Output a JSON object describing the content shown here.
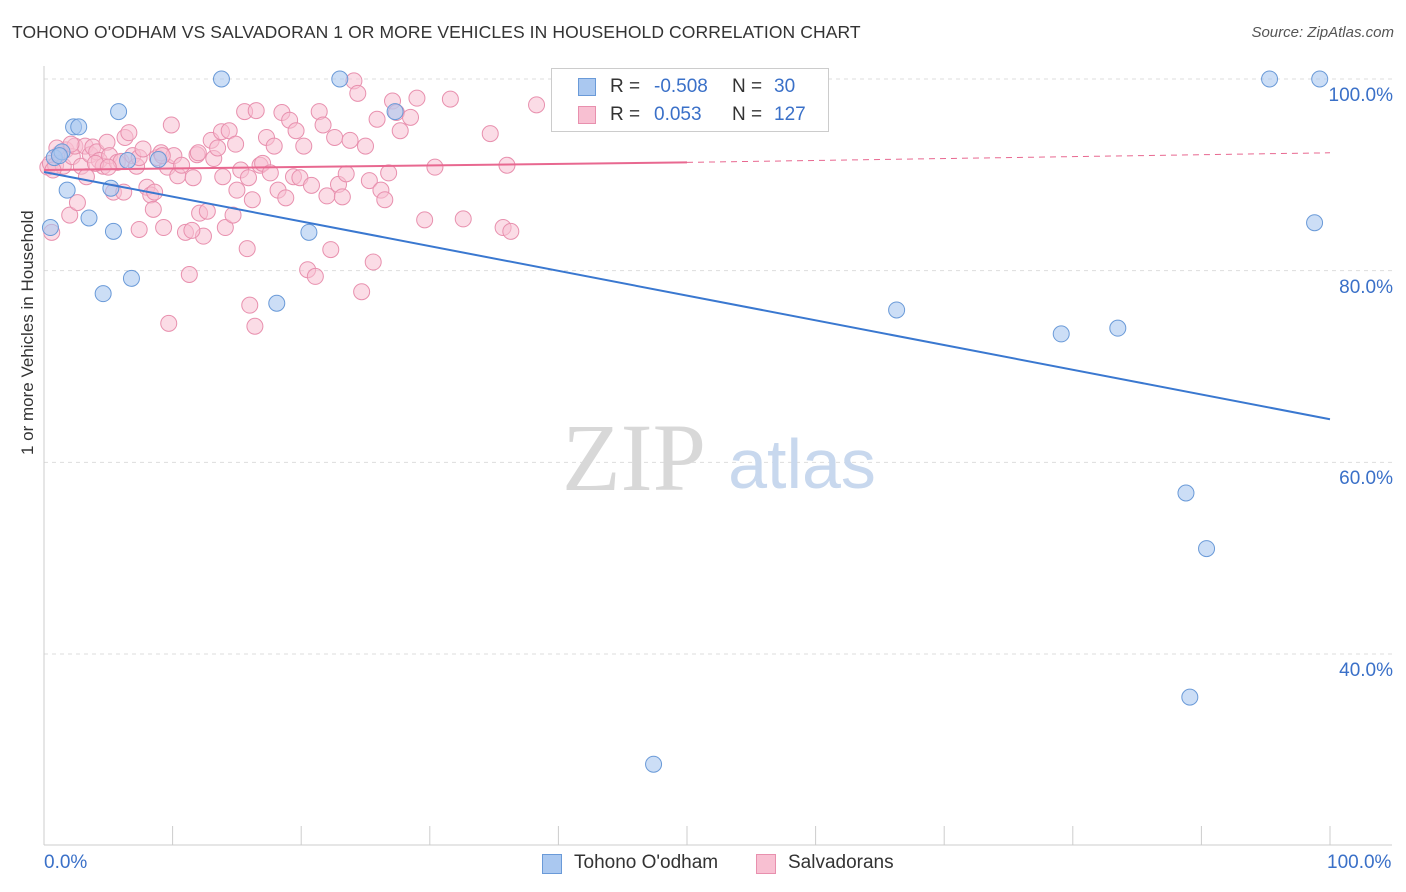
{
  "header": {
    "title": "TOHONO O'ODHAM VS SALVADORAN 1 OR MORE VEHICLES IN HOUSEHOLD CORRELATION CHART",
    "source": "Source: ZipAtlas.com"
  },
  "watermark": {
    "zip": "ZIP",
    "atlas": "atlas"
  },
  "legend": {
    "rows": [
      {
        "r_label": "R =",
        "r_value": "-0.508",
        "n_label": "N =",
        "n_value": "30"
      },
      {
        "r_label": "R =",
        "r_value": "0.053",
        "n_label": "N =",
        "n_value": "127"
      }
    ]
  },
  "colors": {
    "series1_fill": "#aac8f0",
    "series1_stroke": "#6a9ad8",
    "series1_line": "#3a78d0",
    "series2_fill": "#f8c0d2",
    "series2_stroke": "#e890ae",
    "series2_line": "#e86890",
    "accent_text": "#3a70c8",
    "grid": "#dddddd"
  },
  "chart_data": {
    "type": "scatter",
    "title": "TOHONO O'ODHAM VS SALVADORAN 1 OR MORE VEHICLES IN HOUSEHOLD CORRELATION CHART",
    "xlabel": "",
    "ylabel": "1 or more Vehicles in Household",
    "xlim": [
      0,
      100
    ],
    "ylim": [
      20,
      102
    ],
    "x_tick_labels": [
      "0.0%",
      "100.0%"
    ],
    "y_tick_labels": [
      "100.0%",
      "80.0%",
      "60.0%",
      "40.0%"
    ],
    "y_ticks": [
      100,
      80,
      60,
      40
    ],
    "legend_position": "bottom",
    "grid": true,
    "series": [
      {
        "name": "Tohono O'odham",
        "points": [
          [
            0.5,
            84.5
          ],
          [
            0.8,
            91.8
          ],
          [
            1.4,
            92.4
          ],
          [
            1.8,
            88.4
          ],
          [
            2.3,
            95.0
          ],
          [
            2.7,
            95.0
          ],
          [
            3.5,
            85.5
          ],
          [
            4.6,
            77.6
          ],
          [
            5.2,
            88.6
          ],
          [
            5.4,
            84.1
          ],
          [
            5.8,
            96.6
          ],
          [
            6.5,
            91.5
          ],
          [
            6.8,
            79.2
          ],
          [
            8.9,
            91.6
          ],
          [
            13.8,
            100.0
          ],
          [
            18.1,
            76.6
          ],
          [
            20.6,
            84.0
          ],
          [
            23.0,
            100.0
          ],
          [
            27.3,
            96.6
          ],
          [
            95.3,
            100.0
          ],
          [
            99.2,
            100.0
          ],
          [
            66.3,
            75.9
          ],
          [
            79.1,
            73.4
          ],
          [
            83.5,
            74.0
          ],
          [
            98.8,
            85.0
          ],
          [
            88.8,
            56.8
          ],
          [
            90.4,
            51.0
          ],
          [
            89.1,
            35.5
          ],
          [
            47.4,
            28.5
          ],
          [
            1.2,
            92.0
          ]
        ],
        "trend": {
          "x": [
            0,
            100
          ],
          "y": [
            90.3,
            64.5
          ]
        }
      },
      {
        "name": "Salvadorans",
        "points": [
          [
            0.3,
            90.8
          ],
          [
            0.5,
            91.2
          ],
          [
            0.6,
            84.0
          ],
          [
            0.9,
            91.0
          ],
          [
            1.2,
            92.2
          ],
          [
            1.5,
            90.9
          ],
          [
            1.7,
            92.6
          ],
          [
            2.0,
            85.8
          ],
          [
            2.2,
            91.9
          ],
          [
            2.4,
            93.0
          ],
          [
            2.6,
            87.1
          ],
          [
            2.9,
            90.9
          ],
          [
            3.2,
            93.0
          ],
          [
            3.6,
            92.1
          ],
          [
            3.8,
            92.9
          ],
          [
            4.1,
            92.4
          ],
          [
            4.3,
            91.5
          ],
          [
            4.6,
            90.9
          ],
          [
            4.9,
            93.4
          ],
          [
            5.1,
            92.0
          ],
          [
            5.4,
            88.2
          ],
          [
            5.7,
            91.3
          ],
          [
            6.0,
            91.4
          ],
          [
            6.3,
            93.9
          ],
          [
            6.6,
            94.4
          ],
          [
            6.9,
            92.0
          ],
          [
            7.2,
            90.9
          ],
          [
            7.4,
            91.8
          ],
          [
            7.7,
            92.7
          ],
          [
            8.0,
            88.7
          ],
          [
            8.3,
            87.9
          ],
          [
            8.5,
            86.4
          ],
          [
            8.8,
            91.8
          ],
          [
            9.1,
            92.3
          ],
          [
            9.3,
            84.5
          ],
          [
            9.6,
            90.8
          ],
          [
            9.9,
            95.2
          ],
          [
            10.1,
            92.0
          ],
          [
            10.4,
            89.9
          ],
          [
            10.7,
            91.0
          ],
          [
            11.0,
            84.0
          ],
          [
            11.3,
            79.6
          ],
          [
            11.6,
            89.7
          ],
          [
            11.9,
            92.1
          ],
          [
            12.1,
            86.0
          ],
          [
            12.4,
            83.6
          ],
          [
            12.7,
            86.2
          ],
          [
            13.0,
            93.6
          ],
          [
            13.2,
            91.7
          ],
          [
            13.5,
            92.8
          ],
          [
            13.8,
            94.5
          ],
          [
            14.1,
            84.5
          ],
          [
            14.4,
            94.6
          ],
          [
            14.7,
            85.8
          ],
          [
            15.0,
            88.4
          ],
          [
            15.3,
            90.5
          ],
          [
            15.6,
            96.6
          ],
          [
            15.9,
            89.7
          ],
          [
            16.2,
            87.4
          ],
          [
            16.5,
            96.7
          ],
          [
            16.8,
            91.0
          ],
          [
            17.0,
            91.2
          ],
          [
            17.3,
            93.9
          ],
          [
            17.6,
            90.2
          ],
          [
            17.9,
            93.0
          ],
          [
            18.2,
            88.4
          ],
          [
            18.5,
            96.5
          ],
          [
            18.8,
            87.6
          ],
          [
            19.1,
            95.7
          ],
          [
            19.4,
            89.8
          ],
          [
            19.6,
            94.6
          ],
          [
            19.9,
            89.7
          ],
          [
            20.2,
            93.0
          ],
          [
            20.5,
            80.1
          ],
          [
            20.8,
            88.9
          ],
          [
            21.1,
            79.4
          ],
          [
            21.4,
            96.6
          ],
          [
            21.7,
            95.2
          ],
          [
            22.0,
            87.8
          ],
          [
            22.3,
            82.2
          ],
          [
            22.6,
            93.9
          ],
          [
            22.9,
            89.0
          ],
          [
            23.2,
            87.7
          ],
          [
            23.5,
            90.1
          ],
          [
            23.8,
            93.6
          ],
          [
            24.1,
            99.8
          ],
          [
            24.4,
            98.5
          ],
          [
            24.7,
            77.8
          ],
          [
            25.0,
            93.0
          ],
          [
            25.3,
            89.4
          ],
          [
            25.6,
            80.9
          ],
          [
            25.9,
            95.8
          ],
          [
            26.2,
            88.4
          ],
          [
            26.5,
            87.4
          ],
          [
            26.8,
            90.2
          ],
          [
            27.1,
            97.7
          ],
          [
            27.4,
            96.5
          ],
          [
            27.7,
            94.6
          ],
          [
            28.5,
            96.0
          ],
          [
            29.0,
            98.0
          ],
          [
            29.6,
            85.3
          ],
          [
            30.4,
            90.8
          ],
          [
            31.6,
            97.9
          ],
          [
            32.6,
            85.4
          ],
          [
            34.7,
            94.3
          ],
          [
            35.7,
            84.5
          ],
          [
            36.3,
            84.1
          ],
          [
            38.3,
            97.3
          ],
          [
            36.0,
            91.0
          ],
          [
            9.2,
            92.0
          ],
          [
            12.0,
            92.3
          ],
          [
            15.8,
            82.3
          ],
          [
            16.4,
            74.2
          ],
          [
            9.7,
            74.5
          ],
          [
            16.0,
            76.4
          ],
          [
            7.4,
            84.3
          ],
          [
            3.3,
            89.8
          ],
          [
            6.2,
            88.2
          ],
          [
            0.7,
            90.5
          ],
          [
            1.0,
            92.8
          ],
          [
            2.1,
            93.2
          ],
          [
            4.0,
            91.2
          ],
          [
            5.0,
            90.8
          ],
          [
            8.6,
            88.2
          ],
          [
            11.5,
            84.2
          ],
          [
            13.9,
            89.8
          ],
          [
            14.9,
            93.2
          ]
        ],
        "trend": {
          "x": [
            0,
            50
          ],
          "y": [
            90.5,
            91.3
          ],
          "dashed_to": {
            "x": 100,
            "y": 92.3
          }
        }
      }
    ]
  }
}
